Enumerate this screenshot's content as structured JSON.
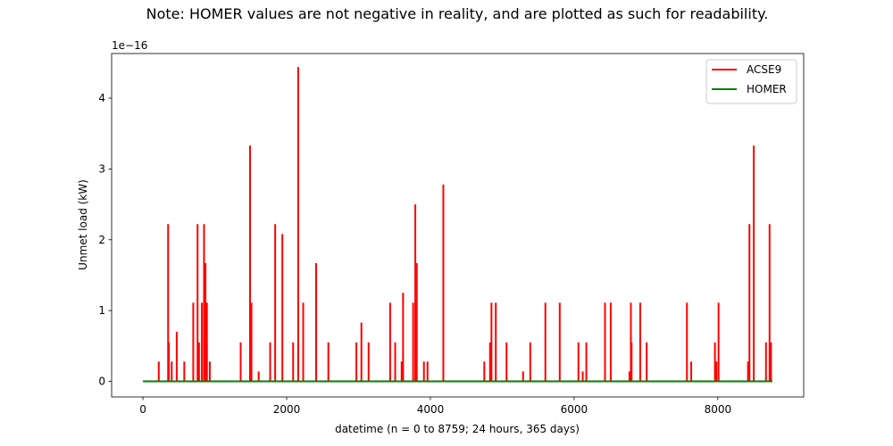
{
  "chart_data": {
    "type": "line",
    "title": "Note: HOMER values are not negative in reality, and are plotted as such for readability.",
    "xlabel": "datetime (n = 0 to 8759; 24 hours, 365 days)",
    "ylabel": "Unmet load (kW)",
    "y_scale_label": "1e−16",
    "xlim": [
      -436,
      9195
    ],
    "ylim": [
      -0.22,
      4.63
    ],
    "x_ticks": [
      0,
      2000,
      4000,
      6000,
      8000
    ],
    "x_tick_labels": [
      "0",
      "2000",
      "4000",
      "6000",
      "8000"
    ],
    "y_ticks": [
      0,
      1,
      2,
      3,
      4
    ],
    "y_tick_labels": [
      "0",
      "1",
      "2",
      "3",
      "4"
    ],
    "grid": false,
    "legend_position": "top-right",
    "series": [
      {
        "name": "ACSE9",
        "color": "#ff0000",
        "x_extent": [
          0,
          8759
        ],
        "spikes": [
          [
            220,
            0.28
          ],
          [
            350,
            2.22
          ],
          [
            360,
            0.55
          ],
          [
            400,
            0.28
          ],
          [
            470,
            0.7
          ],
          [
            575,
            0.28
          ],
          [
            700,
            1.11
          ],
          [
            760,
            2.22
          ],
          [
            780,
            0.55
          ],
          [
            820,
            1.11
          ],
          [
            850,
            2.22
          ],
          [
            870,
            1.67
          ],
          [
            890,
            1.11
          ],
          [
            930,
            0.28
          ],
          [
            1360,
            0.55
          ],
          [
            1490,
            3.33
          ],
          [
            1510,
            1.11
          ],
          [
            1610,
            0.14
          ],
          [
            1770,
            0.55
          ],
          [
            1840,
            2.22
          ],
          [
            1940,
            2.08
          ],
          [
            2090,
            0.55
          ],
          [
            2160,
            4.44
          ],
          [
            2230,
            1.11
          ],
          [
            2410,
            1.67
          ],
          [
            2580,
            0.55
          ],
          [
            2970,
            0.55
          ],
          [
            3040,
            0.83
          ],
          [
            3140,
            0.55
          ],
          [
            3440,
            1.11
          ],
          [
            3510,
            0.55
          ],
          [
            3600,
            0.28
          ],
          [
            3620,
            1.25
          ],
          [
            3760,
            1.11
          ],
          [
            3790,
            2.5
          ],
          [
            3810,
            1.67
          ],
          [
            3910,
            0.28
          ],
          [
            3960,
            0.28
          ],
          [
            4180,
            2.78
          ],
          [
            4750,
            0.28
          ],
          [
            4830,
            0.55
          ],
          [
            4850,
            1.11
          ],
          [
            4910,
            1.11
          ],
          [
            5060,
            0.55
          ],
          [
            5290,
            0.14
          ],
          [
            5390,
            0.55
          ],
          [
            5600,
            1.11
          ],
          [
            5800,
            1.11
          ],
          [
            6060,
            0.55
          ],
          [
            6120,
            0.14
          ],
          [
            6170,
            0.55
          ],
          [
            6430,
            1.11
          ],
          [
            6510,
            1.11
          ],
          [
            6770,
            0.14
          ],
          [
            6790,
            1.11
          ],
          [
            6800,
            0.55
          ],
          [
            6920,
            1.11
          ],
          [
            7010,
            0.55
          ],
          [
            7570,
            1.11
          ],
          [
            7630,
            0.28
          ],
          [
            7960,
            0.55
          ],
          [
            7980,
            0.28
          ],
          [
            8010,
            1.11
          ],
          [
            8420,
            0.28
          ],
          [
            8440,
            2.22
          ],
          [
            8500,
            3.33
          ],
          [
            8670,
            0.55
          ],
          [
            8720,
            2.22
          ],
          [
            8740,
            0.55
          ]
        ]
      },
      {
        "name": "HOMER",
        "color": "#008000",
        "x_extent": [
          0,
          8759
        ],
        "constant_value": 0
      }
    ]
  }
}
